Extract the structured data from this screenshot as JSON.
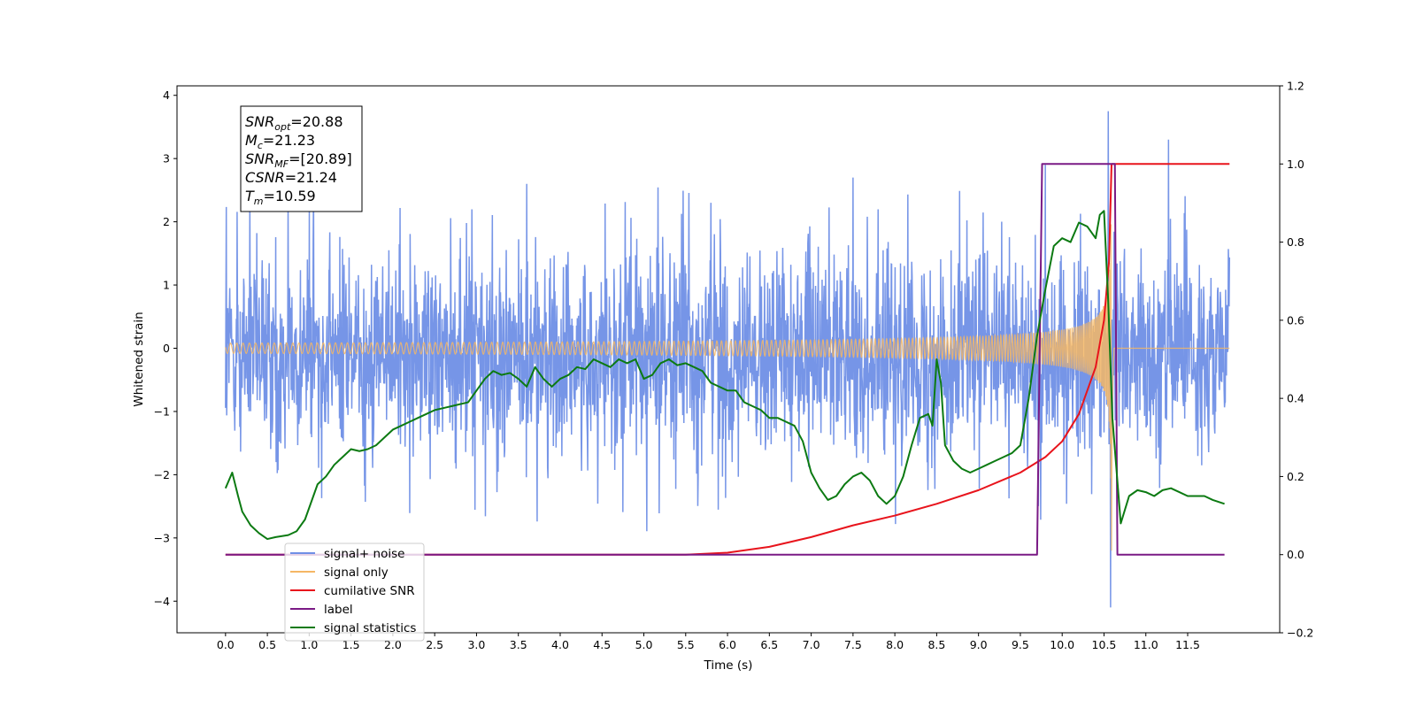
{
  "chart_data": {
    "type": "line",
    "xlabel": "Time (s)",
    "ylabel": "Whitened strain",
    "xlim": [
      -0.58,
      12.6
    ],
    "ylim": [
      -4.5,
      4.15
    ],
    "y2lim": [
      -0.2,
      1.2
    ],
    "x_ticks": [
      "0.0",
      "0.5",
      "1.0",
      "1.5",
      "2.0",
      "2.5",
      "3.0",
      "3.5",
      "4.0",
      "4.5",
      "5.0",
      "5.5",
      "6.0",
      "6.5",
      "7.0",
      "7.5",
      "8.0",
      "8.5",
      "9.0",
      "9.5",
      "10.0",
      "10.5",
      "11.0",
      "11.5"
    ],
    "y_ticks": [
      "4",
      "3",
      "2",
      "1",
      "0",
      "−1",
      "−2",
      "−3",
      "−4"
    ],
    "y2_ticks": [
      "1.2",
      "1.0",
      "0.8",
      "0.6",
      "0.4",
      "0.2",
      "0.0",
      "−0.2"
    ],
    "legend_location": "lower-left",
    "info_box": [
      {
        "sym": "SNR",
        "sub": "opt",
        "val": "=20.88"
      },
      {
        "sym": "M",
        "sub": "c",
        "val": "=21.23"
      },
      {
        "sym": "SNR",
        "sub": "MF",
        "val": "=[20.89]"
      },
      {
        "sym": "CSNR",
        "sub": "",
        "val": "=21.24"
      },
      {
        "sym": "T",
        "sub": "m",
        "val": "=10.59"
      }
    ],
    "series": [
      {
        "name": "signal+ noise",
        "color": "#6f8fe6",
        "axis": "left",
        "x_range": [
          0.0,
          12.0
        ],
        "amplitude_band": [
          -1.4,
          1.2
        ],
        "peaks": [
          [
            1.0,
            2.2
          ],
          [
            3.6,
            2.6
          ],
          [
            5.8,
            2.3
          ],
          [
            7.5,
            2.7
          ],
          [
            9.8,
            2.9
          ],
          [
            10.55,
            3.75
          ],
          [
            10.58,
            -4.1
          ],
          [
            11.27,
            3.3
          ]
        ]
      },
      {
        "name": "signal only",
        "color": "#f5b765",
        "axis": "left",
        "x_range": [
          0.0,
          12.0
        ],
        "merger_time": 10.59,
        "peak_amplitude": 3.2
      },
      {
        "name": "cumilative SNR",
        "color": "#e8141c",
        "axis": "right",
        "x": [
          0.0,
          5.5,
          6.0,
          6.5,
          7.0,
          7.5,
          8.0,
          8.5,
          9.0,
          9.5,
          9.8,
          10.0,
          10.2,
          10.4,
          10.5,
          10.56,
          10.59,
          12.0
        ],
        "y": [
          0.0,
          0.0,
          0.005,
          0.02,
          0.045,
          0.075,
          0.1,
          0.13,
          0.165,
          0.21,
          0.25,
          0.29,
          0.36,
          0.48,
          0.6,
          0.75,
          1.0,
          1.0
        ]
      },
      {
        "name": "label",
        "color": "#7a1a85",
        "axis": "right",
        "x": [
          0.0,
          9.7,
          9.76,
          10.63,
          10.66,
          11.94
        ],
        "y": [
          0.0,
          0.0,
          1.0,
          1.0,
          0.0,
          0.0
        ]
      },
      {
        "name": "signal statistics",
        "color": "#0c7a12",
        "axis": "right",
        "x": [
          0.0,
          0.08,
          0.15,
          0.2,
          0.3,
          0.4,
          0.5,
          0.6,
          0.75,
          0.85,
          0.95,
          1.0,
          1.1,
          1.2,
          1.3,
          1.4,
          1.5,
          1.6,
          1.7,
          1.8,
          1.9,
          2.0,
          2.1,
          2.2,
          2.3,
          2.4,
          2.5,
          2.6,
          2.7,
          2.8,
          2.9,
          3.0,
          3.1,
          3.2,
          3.3,
          3.4,
          3.5,
          3.6,
          3.7,
          3.8,
          3.9,
          4.0,
          4.1,
          4.2,
          4.3,
          4.4,
          4.5,
          4.6,
          4.7,
          4.8,
          4.9,
          5.0,
          5.1,
          5.2,
          5.3,
          5.4,
          5.5,
          5.6,
          5.7,
          5.8,
          5.9,
          6.0,
          6.1,
          6.2,
          6.3,
          6.4,
          6.5,
          6.6,
          6.7,
          6.8,
          6.9,
          7.0,
          7.1,
          7.2,
          7.3,
          7.4,
          7.5,
          7.6,
          7.7,
          7.8,
          7.9,
          8.0,
          8.1,
          8.2,
          8.3,
          8.4,
          8.45,
          8.5,
          8.55,
          8.6,
          8.7,
          8.8,
          8.9,
          9.0,
          9.1,
          9.2,
          9.3,
          9.4,
          9.5,
          9.6,
          9.7,
          9.8,
          9.9,
          10.0,
          10.1,
          10.2,
          10.3,
          10.4,
          10.45,
          10.5,
          10.55,
          10.6,
          10.7,
          10.8,
          10.9,
          11.0,
          11.1,
          11.2,
          11.3,
          11.4,
          11.5,
          11.6,
          11.7,
          11.8,
          11.94
        ],
        "y": [
          0.17,
          0.21,
          0.15,
          0.11,
          0.075,
          0.055,
          0.04,
          0.045,
          0.05,
          0.06,
          0.09,
          0.12,
          0.18,
          0.2,
          0.23,
          0.25,
          0.27,
          0.265,
          0.27,
          0.28,
          0.3,
          0.32,
          0.33,
          0.34,
          0.35,
          0.36,
          0.37,
          0.375,
          0.38,
          0.385,
          0.39,
          0.42,
          0.45,
          0.47,
          0.46,
          0.465,
          0.45,
          0.43,
          0.48,
          0.45,
          0.43,
          0.45,
          0.46,
          0.48,
          0.475,
          0.5,
          0.49,
          0.48,
          0.5,
          0.49,
          0.5,
          0.45,
          0.46,
          0.49,
          0.5,
          0.485,
          0.49,
          0.48,
          0.47,
          0.44,
          0.43,
          0.42,
          0.42,
          0.39,
          0.38,
          0.37,
          0.35,
          0.35,
          0.34,
          0.33,
          0.29,
          0.21,
          0.17,
          0.14,
          0.15,
          0.18,
          0.2,
          0.21,
          0.19,
          0.15,
          0.13,
          0.15,
          0.2,
          0.28,
          0.35,
          0.36,
          0.33,
          0.5,
          0.44,
          0.28,
          0.24,
          0.22,
          0.21,
          0.22,
          0.23,
          0.24,
          0.25,
          0.26,
          0.28,
          0.4,
          0.56,
          0.68,
          0.79,
          0.81,
          0.8,
          0.85,
          0.84,
          0.81,
          0.87,
          0.88,
          0.65,
          0.35,
          0.08,
          0.15,
          0.165,
          0.16,
          0.15,
          0.165,
          0.17,
          0.16,
          0.15,
          0.15,
          0.15,
          0.14,
          0.13
        ]
      }
    ]
  }
}
